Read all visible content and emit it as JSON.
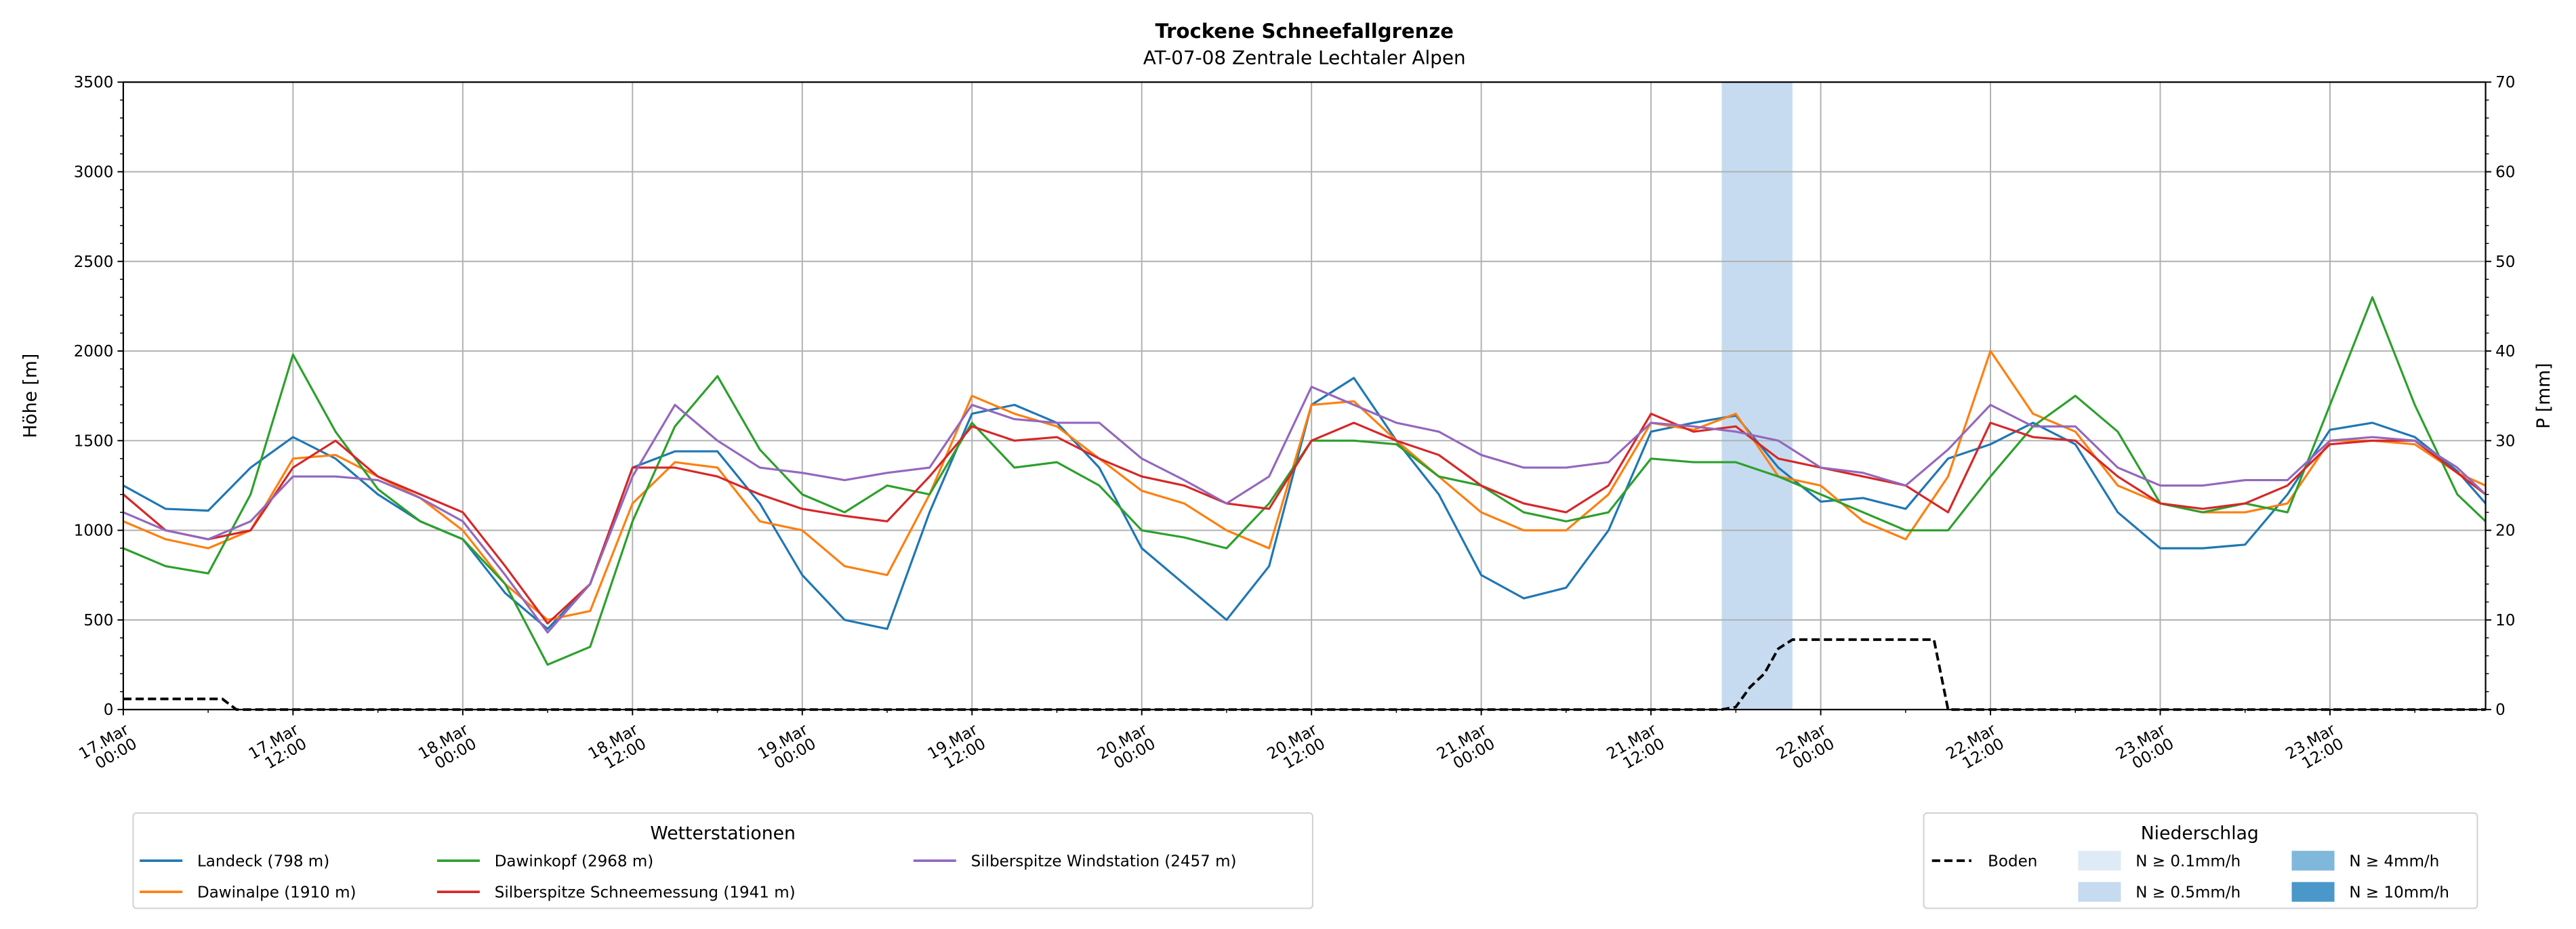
{
  "chart_data": {
    "type": "line",
    "title": "Trockene Schneefallgrenze",
    "subtitle": "AT-07-08 Zentrale Lechtaler Alpen",
    "ylabel": "Höhe [m]",
    "ylabel_right": "P [mm]",
    "ylim": [
      0,
      3500
    ],
    "ylim_right": [
      0,
      70
    ],
    "yticks": [
      "0",
      "500",
      "1000",
      "1500",
      "2000",
      "2500",
      "3000",
      "3500"
    ],
    "yticks_right": [
      "0",
      "10",
      "20",
      "30",
      "40",
      "50",
      "60",
      "70"
    ],
    "x_unit": "hours since 17.Mar 00:00",
    "xlim": [
      0,
      167
    ],
    "xticks": [
      [
        "17.Mar",
        "00:00"
      ],
      [
        "17.Mar",
        "12:00"
      ],
      [
        "18.Mar",
        "00:00"
      ],
      [
        "18.Mar",
        "12:00"
      ],
      [
        "19.Mar",
        "00:00"
      ],
      [
        "19.Mar",
        "12:00"
      ],
      [
        "20.Mar",
        "00:00"
      ],
      [
        "20.Mar",
        "12:00"
      ],
      [
        "21.Mar",
        "00:00"
      ],
      [
        "21.Mar",
        "12:00"
      ],
      [
        "22.Mar",
        "00:00"
      ],
      [
        "22.Mar",
        "12:00"
      ],
      [
        "23.Mar",
        "00:00"
      ],
      [
        "23.Mar",
        "12:00"
      ]
    ],
    "grid": true,
    "x": [
      0,
      3,
      6,
      9,
      12,
      15,
      18,
      21,
      24,
      27,
      30,
      33,
      36,
      39,
      42,
      45,
      48,
      51,
      54,
      57,
      60,
      63,
      66,
      69,
      72,
      75,
      78,
      81,
      84,
      87,
      90,
      93,
      96,
      99,
      102,
      105,
      108,
      111,
      114,
      117,
      120,
      123,
      126,
      129,
      132,
      135,
      138,
      141,
      144,
      147,
      150,
      153,
      156,
      159,
      162,
      165,
      167
    ],
    "series": [
      {
        "name": "Landeck (798 m)",
        "color": "#1f77b4",
        "values": [
          1250,
          1120,
          1110,
          1350,
          1520,
          1400,
          1200,
          1050,
          950,
          650,
          450,
          700,
          1350,
          1440,
          1440,
          1150,
          750,
          500,
          450,
          1100,
          1650,
          1700,
          1600,
          1350,
          900,
          700,
          500,
          800,
          1700,
          1850,
          1500,
          1200,
          750,
          620,
          680,
          1000,
          1550,
          1600,
          1640,
          1350,
          1160,
          1180,
          1120,
          1400,
          1480,
          1600,
          1480,
          1100,
          900,
          900,
          920,
          1200,
          1560,
          1600,
          1520,
          1330,
          1150
        ]
      },
      {
        "name": "Dawinalpe (1910 m)",
        "color": "#ff7f0e",
        "values": [
          1050,
          950,
          900,
          1000,
          1400,
          1420,
          1300,
          1180,
          1000,
          700,
          500,
          550,
          1150,
          1380,
          1350,
          1050,
          1000,
          800,
          750,
          1200,
          1750,
          1650,
          1580,
          1400,
          1220,
          1150,
          1000,
          900,
          1700,
          1720,
          1500,
          1300,
          1100,
          1000,
          1000,
          1200,
          1600,
          1560,
          1650,
          1300,
          1250,
          1050,
          950,
          1300,
          2000,
          1650,
          1550,
          1250,
          1150,
          1100,
          1100,
          1150,
          1500,
          1500,
          1480,
          1320,
          1250
        ]
      },
      {
        "name": "Dawinkopf (2968 m)",
        "color": "#2ca02c",
        "values": [
          900,
          800,
          760,
          1200,
          1980,
          1550,
          1230,
          1050,
          950,
          700,
          250,
          350,
          1050,
          1580,
          1860,
          1450,
          1200,
          1100,
          1250,
          1200,
          1600,
          1350,
          1380,
          1250,
          1000,
          960,
          900,
          1150,
          1500,
          1500,
          1480,
          1300,
          1250,
          1100,
          1050,
          1100,
          1400,
          1380,
          1380,
          1300,
          1200,
          1100,
          1000,
          1000,
          1300,
          1580,
          1750,
          1550,
          1150,
          1100,
          1150,
          1100,
          1700,
          2300,
          1700,
          1200,
          1050
        ]
      },
      {
        "name": "Silberspitze Schneemessung (1941 m)",
        "color": "#d62728",
        "values": [
          1200,
          1000,
          950,
          1000,
          1350,
          1500,
          1300,
          1200,
          1100,
          800,
          480,
          700,
          1350,
          1350,
          1300,
          1200,
          1120,
          1080,
          1050,
          1300,
          1580,
          1500,
          1520,
          1400,
          1300,
          1250,
          1150,
          1120,
          1500,
          1600,
          1500,
          1420,
          1250,
          1150,
          1100,
          1250,
          1650,
          1550,
          1580,
          1400,
          1350,
          1300,
          1250,
          1100,
          1600,
          1520,
          1500,
          1300,
          1150,
          1120,
          1150,
          1250,
          1480,
          1500,
          1500,
          1320,
          1200
        ]
      },
      {
        "name": "Silberspitze Windstation (2457 m)",
        "color": "#9467bd",
        "values": [
          1100,
          1000,
          950,
          1050,
          1300,
          1300,
          1280,
          1180,
          1050,
          750,
          430,
          700,
          1300,
          1700,
          1500,
          1350,
          1320,
          1280,
          1320,
          1350,
          1700,
          1620,
          1600,
          1600,
          1400,
          1280,
          1150,
          1300,
          1800,
          1700,
          1600,
          1550,
          1420,
          1350,
          1350,
          1380,
          1600,
          1580,
          1550,
          1500,
          1350,
          1320,
          1250,
          1450,
          1700,
          1580,
          1580,
          1350,
          1250,
          1250,
          1280,
          1280,
          1500,
          1520,
          1500,
          1350,
          1200
        ]
      }
    ],
    "precip_line": {
      "name": "Boden",
      "axis": "right",
      "color": "#000000",
      "x": [
        0,
        7,
        8,
        113,
        114,
        115,
        116,
        117,
        118,
        128,
        129,
        167
      ],
      "values": [
        1.2,
        1.2,
        0,
        0,
        0.3,
        2.5,
        4,
        6.8,
        7.8,
        7.8,
        0,
        0
      ]
    },
    "precip_bands": [
      {
        "start": 113,
        "end": 118,
        "class": "N ≥ 0.5mm/h",
        "color": "#c6dbef"
      }
    ],
    "legends": {
      "stations": {
        "title": "Wetterstationen",
        "placement": "bottom-left"
      },
      "precip": {
        "title": "Niederschlag",
        "placement": "bottom-right",
        "items": [
          {
            "label": "Boden",
            "type": "dashed",
            "color": "#000000"
          },
          {
            "label": "N ≥ 0.1mm/h",
            "color": "#deebf7"
          },
          {
            "label": "N ≥ 0.5mm/h",
            "color": "#c6dbef"
          },
          {
            "label": "N ≥ 4mm/h",
            "color": "#7fb8da"
          },
          {
            "label": "N ≥ 10mm/h",
            "color": "#4a98c9"
          }
        ]
      }
    }
  }
}
